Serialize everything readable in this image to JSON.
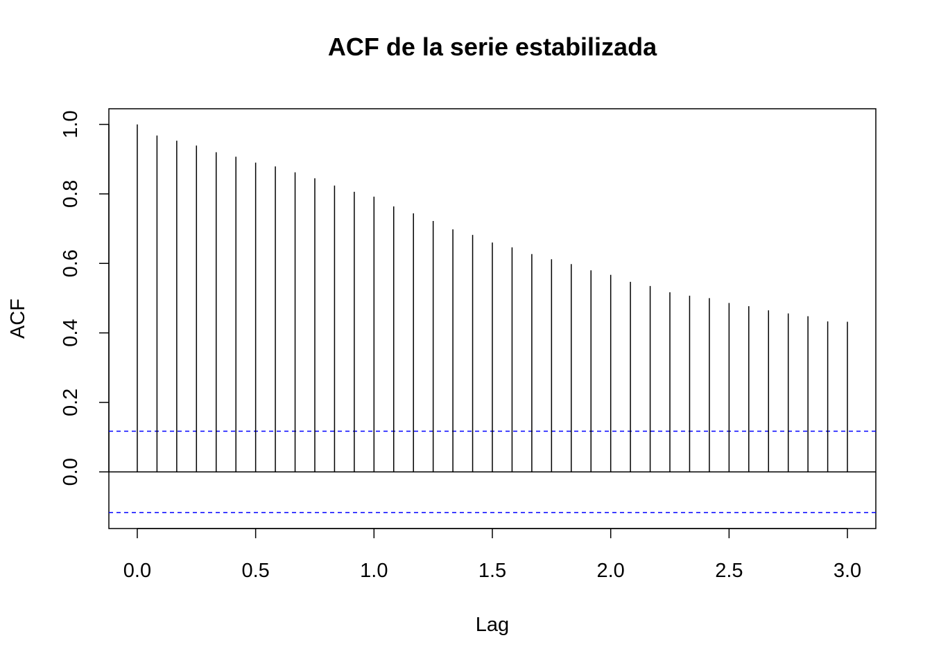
{
  "chart_data": {
    "type": "bar",
    "subtype": "acf-lollipop",
    "title": "ACF de la serie estabilizada",
    "xlabel": "Lag",
    "ylabel": "ACF",
    "xlim": [
      -0.12,
      3.12
    ],
    "ylim": [
      -0.163,
      1.045
    ],
    "x_ticks": [
      0.0,
      0.5,
      1.0,
      1.5,
      2.0,
      2.5,
      3.0
    ],
    "x_tick_labels": [
      "0.0",
      "0.5",
      "1.0",
      "1.5",
      "2.0",
      "2.5",
      "3.0"
    ],
    "y_ticks": [
      0.0,
      0.2,
      0.4,
      0.6,
      0.8,
      1.0
    ],
    "y_tick_labels": [
      "0.0",
      "0.2",
      "0.4",
      "0.6",
      "0.8",
      "1.0"
    ],
    "x": [
      0.0,
      0.0833,
      0.1667,
      0.25,
      0.3333,
      0.4167,
      0.5,
      0.5833,
      0.6667,
      0.75,
      0.8333,
      0.9167,
      1.0,
      1.0833,
      1.1667,
      1.25,
      1.3333,
      1.4167,
      1.5,
      1.5833,
      1.6667,
      1.75,
      1.8333,
      1.9167,
      2.0,
      2.0833,
      2.1667,
      2.25,
      2.3333,
      2.4167,
      2.5,
      2.5833,
      2.6667,
      2.75,
      2.8333,
      2.9167,
      3.0
    ],
    "values": [
      1.0,
      0.968,
      0.953,
      0.939,
      0.92,
      0.907,
      0.89,
      0.879,
      0.862,
      0.845,
      0.824,
      0.806,
      0.792,
      0.764,
      0.744,
      0.722,
      0.698,
      0.682,
      0.66,
      0.646,
      0.627,
      0.612,
      0.598,
      0.58,
      0.567,
      0.547,
      0.535,
      0.517,
      0.507,
      0.5,
      0.486,
      0.477,
      0.465,
      0.456,
      0.448,
      0.433,
      0.432
    ],
    "confidence_band": 0.117,
    "colors": {
      "stems": "#000000",
      "confidence": "#0000ff",
      "zero_line": "#000000"
    },
    "grid": false,
    "legend": "none"
  }
}
